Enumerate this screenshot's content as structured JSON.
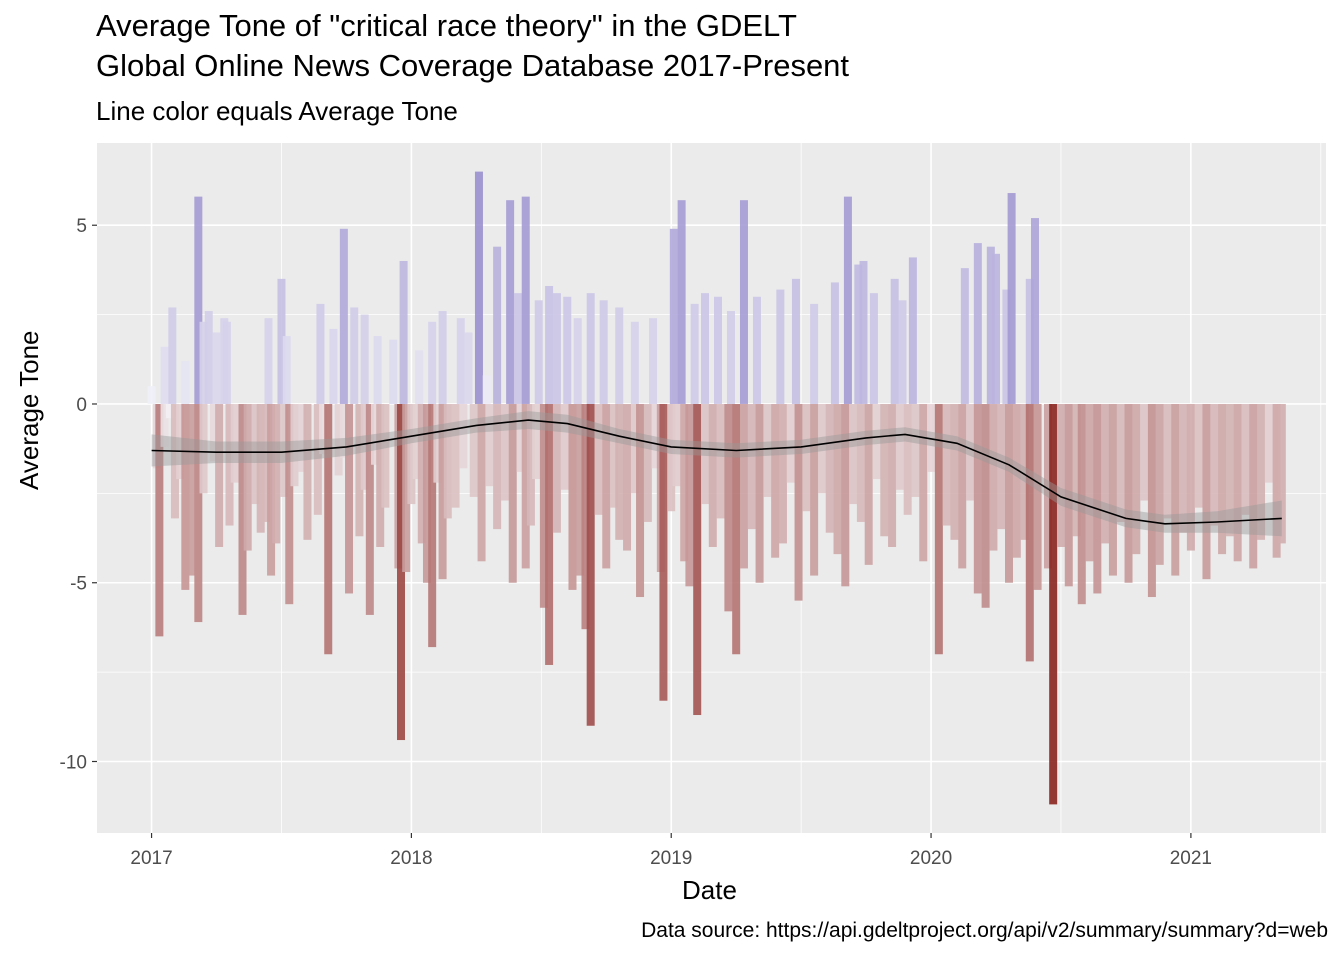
{
  "chart_data": {
    "type": "bar",
    "title_lines": [
      "Average Tone of \"critical race theory\" in the GDELT",
      "Global Online News Coverage Database 2017-Present"
    ],
    "subtitle": "Line color equals Average Tone",
    "xlabel": "Date",
    "ylabel": "Average Tone",
    "caption": "Data source: https://api.gdeltproject.org/api/v2/summary/summary?d=web",
    "x_range": [
      2016.79,
      2021.52
    ],
    "ylim": [
      -12.0,
      7.3
    ],
    "x_ticks": [
      {
        "value": 2017,
        "label": "2017"
      },
      {
        "value": 2018,
        "label": "2018"
      },
      {
        "value": 2019,
        "label": "2019"
      },
      {
        "value": 2020,
        "label": "2020"
      },
      {
        "value": 2021,
        "label": "2021"
      }
    ],
    "y_ticks": [
      {
        "value": 5,
        "label": "5"
      },
      {
        "value": 0,
        "label": "0"
      },
      {
        "value": -5,
        "label": "-5"
      },
      {
        "value": -10,
        "label": "-10"
      }
    ],
    "grid": true,
    "colors": {
      "panel": "#ebebeb",
      "grid_major": "#ffffff",
      "positive_max": "#9a8fcf",
      "neutral": "#f7f7fb",
      "negative_max": "#8b2520",
      "smooth_line": "#000000",
      "smooth_band": "#999999"
    },
    "series": [
      {
        "name": "Average Tone",
        "points": [
          [
            2017.0,
            0.5
          ],
          [
            2017.02,
            -1.8
          ],
          [
            2017.03,
            -6.5
          ],
          [
            2017.05,
            -1.2
          ],
          [
            2017.07,
            -0.4
          ],
          [
            2017.09,
            -3.2
          ],
          [
            2017.11,
            -2.1
          ],
          [
            2017.13,
            -5.2
          ],
          [
            2017.15,
            -4.8
          ],
          [
            2017.18,
            -6.1
          ],
          [
            2017.2,
            -2.5
          ],
          [
            2017.24,
            -1.6
          ],
          [
            2017.26,
            -4.0
          ],
          [
            2017.28,
            2.4
          ],
          [
            2017.3,
            -3.4
          ],
          [
            2017.32,
            -2.2
          ],
          [
            2017.35,
            -5.9
          ],
          [
            2017.37,
            -4.1
          ],
          [
            2017.4,
            -2.8
          ],
          [
            2017.42,
            -3.6
          ],
          [
            2017.44,
            -3.3
          ],
          [
            2017.46,
            -4.8
          ],
          [
            2017.48,
            -3.9
          ],
          [
            2017.51,
            -2.6
          ],
          [
            2017.53,
            -5.6
          ],
          [
            2017.55,
            -2.3
          ],
          [
            2017.58,
            -1.9
          ],
          [
            2017.6,
            -3.8
          ],
          [
            2017.64,
            -3.1
          ],
          [
            2017.66,
            -1.4
          ],
          [
            2017.68,
            -7.0
          ],
          [
            2017.72,
            -2.0
          ],
          [
            2017.74,
            -1.5
          ],
          [
            2017.76,
            -5.3
          ],
          [
            2017.8,
            -3.7
          ],
          [
            2017.82,
            -2.4
          ],
          [
            2017.84,
            -5.9
          ],
          [
            2017.86,
            -1.7
          ],
          [
            2017.88,
            -4.0
          ],
          [
            2017.9,
            -2.9
          ],
          [
            2017.95,
            -4.6
          ],
          [
            2017.96,
            -9.4
          ],
          [
            2017.98,
            -4.7
          ],
          [
            2018.0,
            -2.8
          ],
          [
            2018.02,
            -2.1
          ],
          [
            2018.04,
            -3.9
          ],
          [
            2018.06,
            -5.0
          ],
          [
            2018.08,
            -6.8
          ],
          [
            2018.1,
            -2.2
          ],
          [
            2018.12,
            -4.9
          ],
          [
            2018.14,
            -3.2
          ],
          [
            2018.17,
            -2.9
          ],
          [
            2018.2,
            -1.8
          ],
          [
            2018.24,
            -2.6
          ],
          [
            2018.27,
            -4.4
          ],
          [
            2018.3,
            -2.3
          ],
          [
            2018.33,
            -3.5
          ],
          [
            2018.36,
            -2.7
          ],
          [
            2018.39,
            -5.0
          ],
          [
            2018.42,
            -1.9
          ],
          [
            2018.44,
            -4.6
          ],
          [
            2018.46,
            -3.4
          ],
          [
            2018.48,
            -2.1
          ],
          [
            2018.51,
            -5.7
          ],
          [
            2018.53,
            -7.3
          ],
          [
            2018.56,
            -3.6
          ],
          [
            2018.59,
            -2.4
          ],
          [
            2018.62,
            -5.2
          ],
          [
            2018.65,
            -4.8
          ],
          [
            2018.67,
            -6.3
          ],
          [
            2018.69,
            -9.0
          ],
          [
            2018.72,
            -3.1
          ],
          [
            2018.75,
            -4.6
          ],
          [
            2018.78,
            -2.9
          ],
          [
            2018.8,
            -3.8
          ],
          [
            2018.83,
            -4.1
          ],
          [
            2018.86,
            -2.5
          ],
          [
            2018.88,
            -5.4
          ],
          [
            2018.91,
            -3.3
          ],
          [
            2018.94,
            -1.8
          ],
          [
            2018.96,
            -4.7
          ],
          [
            2018.97,
            -8.3
          ],
          [
            2019.0,
            -3.0
          ],
          [
            2019.02,
            -2.3
          ],
          [
            2019.05,
            -4.4
          ],
          [
            2019.07,
            -5.1
          ],
          [
            2019.1,
            -8.7
          ],
          [
            2019.13,
            -2.8
          ],
          [
            2019.16,
            -4.0
          ],
          [
            2019.19,
            -3.2
          ],
          [
            2019.22,
            -5.8
          ],
          [
            2019.25,
            -7.0
          ],
          [
            2019.28,
            -4.6
          ],
          [
            2019.31,
            -3.5
          ],
          [
            2019.34,
            -5.0
          ],
          [
            2019.37,
            -2.6
          ],
          [
            2019.4,
            -4.3
          ],
          [
            2019.43,
            -3.9
          ],
          [
            2019.46,
            -2.2
          ],
          [
            2019.49,
            -5.5
          ],
          [
            2019.52,
            -3.0
          ],
          [
            2019.55,
            -4.8
          ],
          [
            2019.58,
            -2.5
          ],
          [
            2019.61,
            -3.6
          ],
          [
            2019.64,
            -4.2
          ],
          [
            2019.67,
            -5.1
          ],
          [
            2019.7,
            -2.8
          ],
          [
            2019.73,
            -3.3
          ],
          [
            2019.76,
            -4.5
          ],
          [
            2019.79,
            -2.1
          ],
          [
            2019.82,
            -3.7
          ],
          [
            2019.85,
            -4.0
          ],
          [
            2019.88,
            -2.4
          ],
          [
            2019.91,
            -3.1
          ],
          [
            2019.94,
            -2.6
          ],
          [
            2019.97,
            -4.4
          ],
          [
            2020.0,
            -1.9
          ],
          [
            2020.03,
            -7.0
          ],
          [
            2020.06,
            -3.4
          ],
          [
            2020.09,
            -3.8
          ],
          [
            2020.12,
            -4.6
          ],
          [
            2020.15,
            -2.7
          ],
          [
            2020.18,
            -5.3
          ],
          [
            2020.21,
            -5.7
          ],
          [
            2020.24,
            -4.1
          ],
          [
            2020.27,
            -3.5
          ],
          [
            2020.3,
            -5.0
          ],
          [
            2020.33,
            -4.3
          ],
          [
            2020.36,
            -3.8
          ],
          [
            2020.38,
            -7.2
          ],
          [
            2020.41,
            -5.2
          ],
          [
            2020.45,
            -4.6
          ],
          [
            2020.47,
            -11.2
          ],
          [
            2020.5,
            -4.0
          ],
          [
            2020.53,
            -5.1
          ],
          [
            2020.56,
            -3.7
          ],
          [
            2020.58,
            -5.6
          ],
          [
            2020.61,
            -4.4
          ],
          [
            2020.64,
            -5.3
          ],
          [
            2020.67,
            -3.9
          ],
          [
            2020.7,
            -4.8
          ],
          [
            2020.73,
            -3.3
          ],
          [
            2020.76,
            -5.0
          ],
          [
            2020.79,
            -4.2
          ],
          [
            2020.82,
            -2.7
          ],
          [
            2020.85,
            -5.4
          ],
          [
            2020.88,
            -4.5
          ],
          [
            2020.91,
            -3.2
          ],
          [
            2020.94,
            -4.8
          ],
          [
            2020.97,
            -3.6
          ],
          [
            2021.0,
            -4.1
          ],
          [
            2021.03,
            -2.9
          ],
          [
            2021.06,
            -4.9
          ],
          [
            2021.09,
            -3.4
          ],
          [
            2021.12,
            -4.2
          ],
          [
            2021.15,
            -3.7
          ],
          [
            2021.18,
            -4.4
          ],
          [
            2021.21,
            -3.1
          ],
          [
            2021.24,
            -4.6
          ],
          [
            2021.27,
            -3.8
          ],
          [
            2021.3,
            -2.2
          ],
          [
            2021.33,
            -4.3
          ],
          [
            2021.35,
            -3.9
          ],
          [
            2017.05,
            1.6
          ],
          [
            2017.08,
            2.7
          ],
          [
            2017.13,
            1.2
          ],
          [
            2017.18,
            5.8
          ],
          [
            2017.2,
            2.3
          ],
          [
            2017.22,
            2.6
          ],
          [
            2017.25,
            2.0
          ],
          [
            2017.29,
            2.3
          ],
          [
            2017.45,
            2.4
          ],
          [
            2017.5,
            3.5
          ],
          [
            2017.52,
            1.9
          ],
          [
            2017.65,
            2.8
          ],
          [
            2017.7,
            2.1
          ],
          [
            2017.74,
            4.9
          ],
          [
            2017.78,
            2.7
          ],
          [
            2017.82,
            2.5
          ],
          [
            2017.87,
            1.9
          ],
          [
            2017.93,
            1.8
          ],
          [
            2017.97,
            4.0
          ],
          [
            2018.03,
            1.5
          ],
          [
            2018.08,
            2.3
          ],
          [
            2018.12,
            2.6
          ],
          [
            2018.19,
            2.4
          ],
          [
            2018.22,
            2.0
          ],
          [
            2018.26,
            6.5
          ],
          [
            2018.29,
            0.8
          ],
          [
            2018.33,
            4.4
          ],
          [
            2018.38,
            5.7
          ],
          [
            2018.41,
            3.1
          ],
          [
            2018.44,
            5.8
          ],
          [
            2018.49,
            2.9
          ],
          [
            2018.53,
            3.3
          ],
          [
            2018.56,
            3.1
          ],
          [
            2018.6,
            3.0
          ],
          [
            2018.64,
            2.4
          ],
          [
            2018.69,
            3.1
          ],
          [
            2018.74,
            2.9
          ],
          [
            2018.8,
            2.7
          ],
          [
            2018.86,
            2.3
          ],
          [
            2018.93,
            2.4
          ],
          [
            2019.01,
            4.9
          ],
          [
            2019.04,
            5.7
          ],
          [
            2019.09,
            2.8
          ],
          [
            2019.13,
            3.1
          ],
          [
            2019.18,
            3.0
          ],
          [
            2019.23,
            2.6
          ],
          [
            2019.28,
            5.7
          ],
          [
            2019.33,
            3.0
          ],
          [
            2019.42,
            3.2
          ],
          [
            2019.48,
            3.5
          ],
          [
            2019.55,
            2.8
          ],
          [
            2019.63,
            3.4
          ],
          [
            2019.68,
            5.8
          ],
          [
            2019.72,
            3.9
          ],
          [
            2019.74,
            4.0
          ],
          [
            2019.78,
            3.1
          ],
          [
            2019.86,
            3.5
          ],
          [
            2019.89,
            2.9
          ],
          [
            2019.93,
            4.1
          ],
          [
            2020.13,
            3.8
          ],
          [
            2020.18,
            4.5
          ],
          [
            2020.23,
            4.4
          ],
          [
            2020.25,
            4.2
          ],
          [
            2020.29,
            3.2
          ],
          [
            2020.31,
            5.9
          ],
          [
            2020.38,
            3.5
          ],
          [
            2020.4,
            5.2
          ]
        ]
      }
    ],
    "smooth": {
      "name": "loess",
      "x": [
        2017.0,
        2017.25,
        2017.5,
        2017.75,
        2018.0,
        2018.25,
        2018.45,
        2018.6,
        2018.8,
        2019.0,
        2019.25,
        2019.5,
        2019.75,
        2019.9,
        2020.1,
        2020.3,
        2020.5,
        2020.75,
        2020.9,
        2021.1,
        2021.35
      ],
      "y": [
        -1.3,
        -1.35,
        -1.35,
        -1.2,
        -0.9,
        -0.6,
        -0.45,
        -0.55,
        -0.9,
        -1.2,
        -1.3,
        -1.2,
        -0.95,
        -0.85,
        -1.1,
        -1.7,
        -2.6,
        -3.2,
        -3.35,
        -3.3,
        -3.2
      ],
      "se": [
        0.45,
        0.3,
        0.3,
        0.25,
        0.2,
        0.2,
        0.25,
        0.25,
        0.2,
        0.2,
        0.2,
        0.2,
        0.2,
        0.2,
        0.2,
        0.2,
        0.25,
        0.25,
        0.25,
        0.3,
        0.5
      ]
    }
  }
}
